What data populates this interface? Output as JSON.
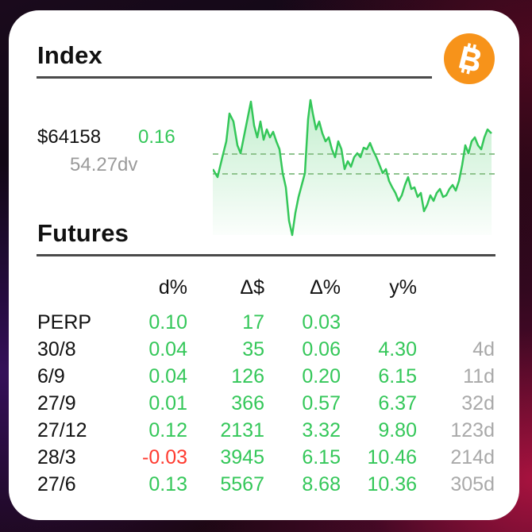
{
  "index": {
    "title": "Index",
    "price": "$64158",
    "change": "0.16",
    "dvol": "54.27dv"
  },
  "futures": {
    "title": "Futures",
    "columns": [
      "d%",
      "Δ$",
      "Δ%",
      "y%"
    ],
    "rows": [
      {
        "label": "PERP",
        "d": "0.10",
        "delta_usd": "17",
        "delta_pct": "0.03",
        "y": "",
        "days": ""
      },
      {
        "label": "30/8",
        "d": "0.04",
        "delta_usd": "35",
        "delta_pct": "0.06",
        "y": "4.30",
        "days": "4d"
      },
      {
        "label": "6/9",
        "d": "0.04",
        "delta_usd": "126",
        "delta_pct": "0.20",
        "y": "6.15",
        "days": "11d"
      },
      {
        "label": "27/9",
        "d": "0.01",
        "delta_usd": "366",
        "delta_pct": "0.57",
        "y": "6.37",
        "days": "32d"
      },
      {
        "label": "27/12",
        "d": "0.12",
        "delta_usd": "2131",
        "delta_pct": "3.32",
        "y": "9.80",
        "days": "123d"
      },
      {
        "label": "28/3",
        "d": "-0.03",
        "delta_usd": "3945",
        "delta_pct": "6.15",
        "y": "10.46",
        "days": "214d"
      },
      {
        "label": "27/6",
        "d": "0.13",
        "delta_usd": "5567",
        "delta_pct": "8.68",
        "y": "10.36",
        "days": "305d"
      }
    ]
  },
  "icons": {
    "logo": "bitcoin-logo-icon"
  },
  "colors": {
    "positive": "#34c759",
    "negative": "#ff3b30",
    "muted": "#a9a9a9",
    "bitcoin": "#f7931a"
  }
}
